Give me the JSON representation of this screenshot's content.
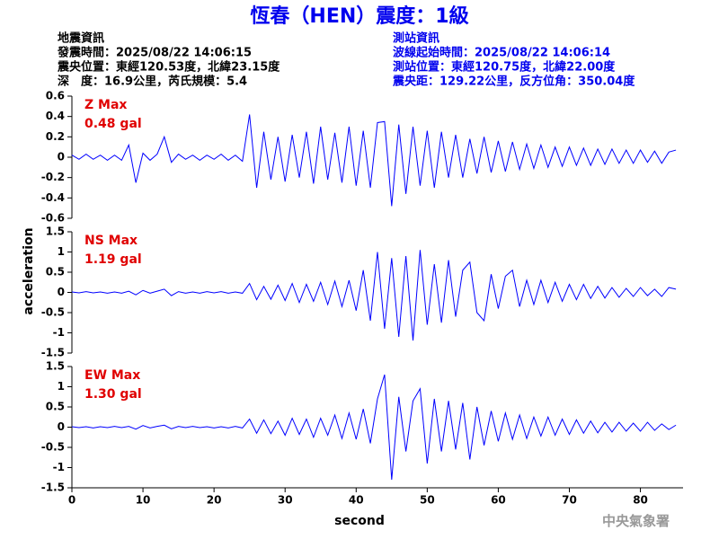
{
  "header": {
    "title": "恆春（HEN）震度：1級",
    "left": [
      "地震資訊",
      "發震時間：2025/08/22 14:06:15",
      "震央位置：東經120.53度，北緯23.15度",
      "深　度：16.9公里，芮氏規模：5.4"
    ],
    "right": [
      "測站資訊",
      "波線起始時間：2025/08/22 14:06:14",
      "測站位置：東經120.75度，北緯22.00度",
      "震央距：129.22公里，反方位角：350.04度"
    ]
  },
  "footer": "中央氣象署",
  "chart_data": [
    {
      "type": "line",
      "annotations": [
        "Z Max",
        "0.48 gal"
      ],
      "annotation_color": "#e00000",
      "xlim": [
        0,
        86
      ],
      "ylim": [
        -0.6,
        0.6
      ],
      "yticks": [
        0.6,
        0.4,
        0.2,
        0,
        -0.2,
        -0.4,
        -0.6
      ],
      "x": [
        0,
        1,
        2,
        3,
        4,
        5,
        6,
        7,
        8,
        9,
        10,
        11,
        12,
        13,
        14,
        15,
        16,
        17,
        18,
        19,
        20,
        21,
        22,
        23,
        24,
        25,
        26,
        27,
        28,
        29,
        30,
        31,
        32,
        33,
        34,
        35,
        36,
        37,
        38,
        39,
        40,
        41,
        42,
        43,
        44,
        45,
        46,
        47,
        48,
        49,
        50,
        51,
        52,
        53,
        54,
        55,
        56,
        57,
        58,
        59,
        60,
        61,
        62,
        63,
        64,
        65,
        66,
        67,
        68,
        69,
        70,
        71,
        72,
        73,
        74,
        75,
        76,
        77,
        78,
        79,
        80,
        81,
        82,
        83,
        84,
        85
      ],
      "series": [
        {
          "color": "#0000ff",
          "values": [
            0.02,
            -0.02,
            0.03,
            -0.02,
            0.02,
            -0.03,
            0.02,
            -0.03,
            0.12,
            -0.25,
            0.04,
            -0.03,
            0.03,
            0.2,
            -0.05,
            0.03,
            -0.02,
            0.02,
            -0.03,
            0.02,
            -0.02,
            0.03,
            -0.03,
            0.02,
            -0.04,
            0.42,
            -0.3,
            0.25,
            -0.22,
            0.2,
            -0.24,
            0.22,
            -0.2,
            0.25,
            -0.26,
            0.3,
            -0.22,
            0.24,
            -0.25,
            0.3,
            -0.28,
            0.26,
            -0.3,
            0.34,
            0.35,
            -0.48,
            0.32,
            -0.36,
            0.3,
            -0.28,
            0.26,
            -0.3,
            0.25,
            -0.2,
            0.22,
            -0.2,
            0.18,
            -0.16,
            0.2,
            -0.15,
            0.16,
            -0.14,
            0.15,
            -0.12,
            0.13,
            -0.11,
            0.12,
            -0.1,
            0.1,
            -0.09,
            0.1,
            -0.08,
            0.09,
            -0.08,
            0.08,
            -0.07,
            0.08,
            -0.06,
            0.07,
            -0.06,
            0.07,
            -0.05,
            0.06,
            -0.06,
            0.05,
            0.07
          ]
        }
      ]
    },
    {
      "type": "line",
      "annotations": [
        "NS Max",
        "1.19 gal"
      ],
      "annotation_color": "#e00000",
      "ylabel": "acceleration",
      "xlim": [
        0,
        86
      ],
      "ylim": [
        -1.5,
        1.5
      ],
      "yticks": [
        1.5,
        1,
        0.5,
        0,
        -0.5,
        -1,
        -1.5
      ],
      "x": [
        0,
        1,
        2,
        3,
        4,
        5,
        6,
        7,
        8,
        9,
        10,
        11,
        12,
        13,
        14,
        15,
        16,
        17,
        18,
        19,
        20,
        21,
        22,
        23,
        24,
        25,
        26,
        27,
        28,
        29,
        30,
        31,
        32,
        33,
        34,
        35,
        36,
        37,
        38,
        39,
        40,
        41,
        42,
        43,
        44,
        45,
        46,
        47,
        48,
        49,
        50,
        51,
        52,
        53,
        54,
        55,
        56,
        57,
        58,
        59,
        60,
        61,
        62,
        63,
        64,
        65,
        66,
        67,
        68,
        69,
        70,
        71,
        72,
        73,
        74,
        75,
        76,
        77,
        78,
        79,
        80,
        81,
        82,
        83,
        84,
        85
      ],
      "series": [
        {
          "color": "#0000ff",
          "values": [
            0.01,
            -0.01,
            0.02,
            -0.01,
            0.01,
            -0.02,
            0.01,
            -0.02,
            0.03,
            -0.06,
            0.05,
            -0.02,
            0.03,
            0.08,
            -0.08,
            0.02,
            -0.02,
            0.01,
            -0.02,
            0.02,
            -0.01,
            0.02,
            -0.02,
            0.01,
            -0.02,
            0.22,
            -0.18,
            0.15,
            -0.17,
            0.18,
            -0.2,
            0.22,
            -0.25,
            0.2,
            -0.22,
            0.25,
            -0.3,
            0.28,
            -0.35,
            0.3,
            -0.45,
            0.55,
            -0.7,
            1.0,
            -0.9,
            0.85,
            -1.1,
            0.9,
            -1.19,
            1.05,
            -0.8,
            0.7,
            -0.75,
            0.8,
            -0.6,
            0.55,
            0.75,
            -0.5,
            -0.7,
            0.45,
            -0.4,
            0.4,
            0.55,
            -0.35,
            0.3,
            -0.3,
            0.3,
            -0.25,
            0.25,
            -0.22,
            0.2,
            -0.18,
            0.2,
            -0.15,
            0.15,
            -0.14,
            0.12,
            -0.12,
            0.1,
            -0.1,
            0.12,
            -0.08,
            0.08,
            -0.1,
            0.12,
            0.08
          ]
        }
      ]
    },
    {
      "type": "line",
      "annotations": [
        "EW Max",
        "1.30 gal"
      ],
      "annotation_color": "#e00000",
      "xlabel": "second",
      "xlim": [
        0,
        86
      ],
      "ylim": [
        -1.5,
        1.5
      ],
      "yticks": [
        1.5,
        1,
        0.5,
        0,
        -0.5,
        -1,
        -1.5
      ],
      "xticks": [
        0,
        10,
        20,
        30,
        40,
        50,
        60,
        70,
        80
      ],
      "x": [
        0,
        1,
        2,
        3,
        4,
        5,
        6,
        7,
        8,
        9,
        10,
        11,
        12,
        13,
        14,
        15,
        16,
        17,
        18,
        19,
        20,
        21,
        22,
        23,
        24,
        25,
        26,
        27,
        28,
        29,
        30,
        31,
        32,
        33,
        34,
        35,
        36,
        37,
        38,
        39,
        40,
        41,
        42,
        43,
        44,
        45,
        46,
        47,
        48,
        49,
        50,
        51,
        52,
        53,
        54,
        55,
        56,
        57,
        58,
        59,
        60,
        61,
        62,
        63,
        64,
        65,
        66,
        67,
        68,
        69,
        70,
        71,
        72,
        73,
        74,
        75,
        76,
        77,
        78,
        79,
        80,
        81,
        82,
        83,
        84,
        85
      ],
      "series": [
        {
          "color": "#0000ff",
          "values": [
            0.01,
            -0.01,
            0.01,
            -0.02,
            0.01,
            -0.01,
            0.02,
            -0.01,
            0.02,
            -0.05,
            0.04,
            -0.02,
            0.02,
            0.05,
            -0.04,
            0.02,
            -0.01,
            0.02,
            -0.01,
            0.01,
            -0.02,
            0.01,
            -0.02,
            0.02,
            -0.02,
            0.2,
            -0.15,
            0.18,
            -0.16,
            0.15,
            -0.2,
            0.22,
            -0.18,
            0.2,
            -0.25,
            0.22,
            -0.2,
            0.3,
            -0.28,
            0.35,
            -0.3,
            0.45,
            -0.4,
            0.7,
            1.3,
            -1.3,
            0.75,
            -0.6,
            0.65,
            0.95,
            -0.9,
            0.7,
            -0.6,
            0.65,
            -0.55,
            0.6,
            -0.8,
            0.5,
            -0.45,
            0.4,
            -0.35,
            0.35,
            -0.3,
            0.3,
            -0.28,
            0.25,
            -0.22,
            0.25,
            -0.2,
            0.2,
            -0.18,
            0.18,
            -0.15,
            0.15,
            -0.14,
            0.12,
            -0.12,
            0.12,
            -0.1,
            0.1,
            -0.1,
            0.12,
            -0.08,
            0.08,
            -0.06,
            0.05
          ]
        }
      ]
    }
  ]
}
